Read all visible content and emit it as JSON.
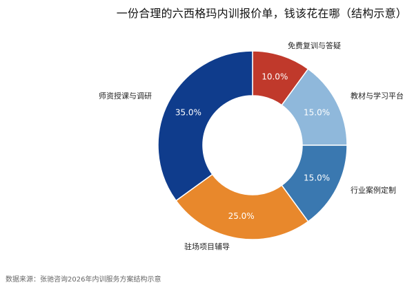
{
  "chart_data": {
    "type": "pie",
    "title": "一份合理的六西格玛内训报价单，钱该花在哪（结构示意）",
    "categories": [
      "免费复训与答疑",
      "教材与学习平台",
      "行业案例定制",
      "驻场项目辅导",
      "师资授课与调研"
    ],
    "values": [
      10.0,
      15.0,
      15.0,
      25.0,
      35.0
    ],
    "value_labels": [
      "10.0%",
      "15.0%",
      "15.0%",
      "25.0%",
      "35.0%"
    ],
    "colors": [
      "#c0392b",
      "#8fb8db",
      "#3a78b0",
      "#e8882c",
      "#0f3c8c"
    ],
    "donut": true,
    "start_angle_deg": 0,
    "direction": "clockwise",
    "legend": "none",
    "category_labels_outside": true
  },
  "footer": {
    "source": "数据来源：张驰咨询2026年内训服务方案结构示意"
  }
}
